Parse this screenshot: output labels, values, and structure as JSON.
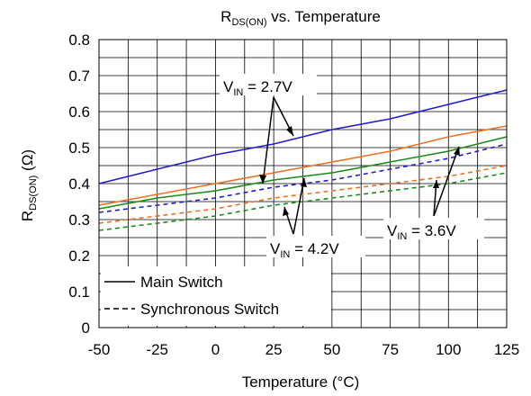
{
  "chart_data": {
    "type": "line",
    "title": {
      "main": "R",
      "sub": "DS(ON)",
      "rest": " vs. Temperature"
    },
    "xlabel": "Temperature (°C)",
    "ylabel": {
      "main": "R",
      "sub": "DS(ON)",
      "rest": " (Ω)"
    },
    "xlim": [
      -50,
      125
    ],
    "ylim": [
      0,
      0.8
    ],
    "x_ticks": [
      "-50",
      "-25",
      "0",
      "25",
      "50",
      "75",
      "100",
      "125"
    ],
    "y_ticks": [
      "0",
      "0.1",
      "0.2",
      "0.3",
      "0.4",
      "0.5",
      "0.6",
      "0.7",
      "0.8"
    ],
    "grid": true,
    "legend_position": "bottom-left",
    "legend": [
      {
        "label": "Main Switch",
        "style": "solid"
      },
      {
        "label": "Synchronous Switch",
        "style": "dashed"
      }
    ],
    "annotations": [
      {
        "prefix": "V",
        "sub": "IN",
        "value": " = 2.7V"
      },
      {
        "prefix": "V",
        "sub": "IN",
        "value": " = 4.2V"
      },
      {
        "prefix": "V",
        "sub": "IN",
        "value": " = 3.6V"
      }
    ],
    "x": [
      -50,
      -25,
      0,
      25,
      50,
      75,
      100,
      125
    ],
    "series": [
      {
        "color": "#1f1fd0",
        "style": "solid",
        "values": [
          0.4,
          0.44,
          0.48,
          0.51,
          0.55,
          0.58,
          0.62,
          0.66
        ]
      },
      {
        "color": "#f07020",
        "style": "solid",
        "values": [
          0.34,
          0.37,
          0.4,
          0.43,
          0.46,
          0.49,
          0.53,
          0.56
        ]
      },
      {
        "color": "#1a8c1a",
        "style": "solid",
        "values": [
          0.33,
          0.36,
          0.38,
          0.41,
          0.43,
          0.46,
          0.49,
          0.53
        ]
      },
      {
        "color": "#1f1fd0",
        "style": "dashed",
        "values": [
          0.32,
          0.34,
          0.36,
          0.39,
          0.41,
          0.44,
          0.47,
          0.51
        ]
      },
      {
        "color": "#f07020",
        "style": "dashed",
        "values": [
          0.29,
          0.31,
          0.33,
          0.36,
          0.38,
          0.4,
          0.42,
          0.45
        ]
      },
      {
        "color": "#1a8c1a",
        "style": "dashed",
        "values": [
          0.27,
          0.29,
          0.31,
          0.34,
          0.36,
          0.38,
          0.4,
          0.43
        ]
      }
    ]
  }
}
